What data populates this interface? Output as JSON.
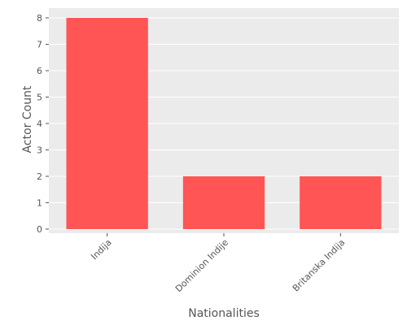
{
  "chart_data": {
    "type": "bar",
    "categories": [
      "Indija",
      "Dominion Indije",
      "Britanska Indija"
    ],
    "values": [
      8,
      2,
      2
    ],
    "xlabel": "Nationalities",
    "ylabel": "Actor Count",
    "ylim": [
      0,
      8.4
    ],
    "yticks": [
      0,
      1,
      2,
      3,
      4,
      5,
      6,
      7,
      8
    ],
    "grid": true,
    "legend": "none",
    "colors": {
      "bar": "#ff5555",
      "plot_background": "#ebebeb",
      "grid": "#ffffff",
      "text": "#555555"
    }
  }
}
